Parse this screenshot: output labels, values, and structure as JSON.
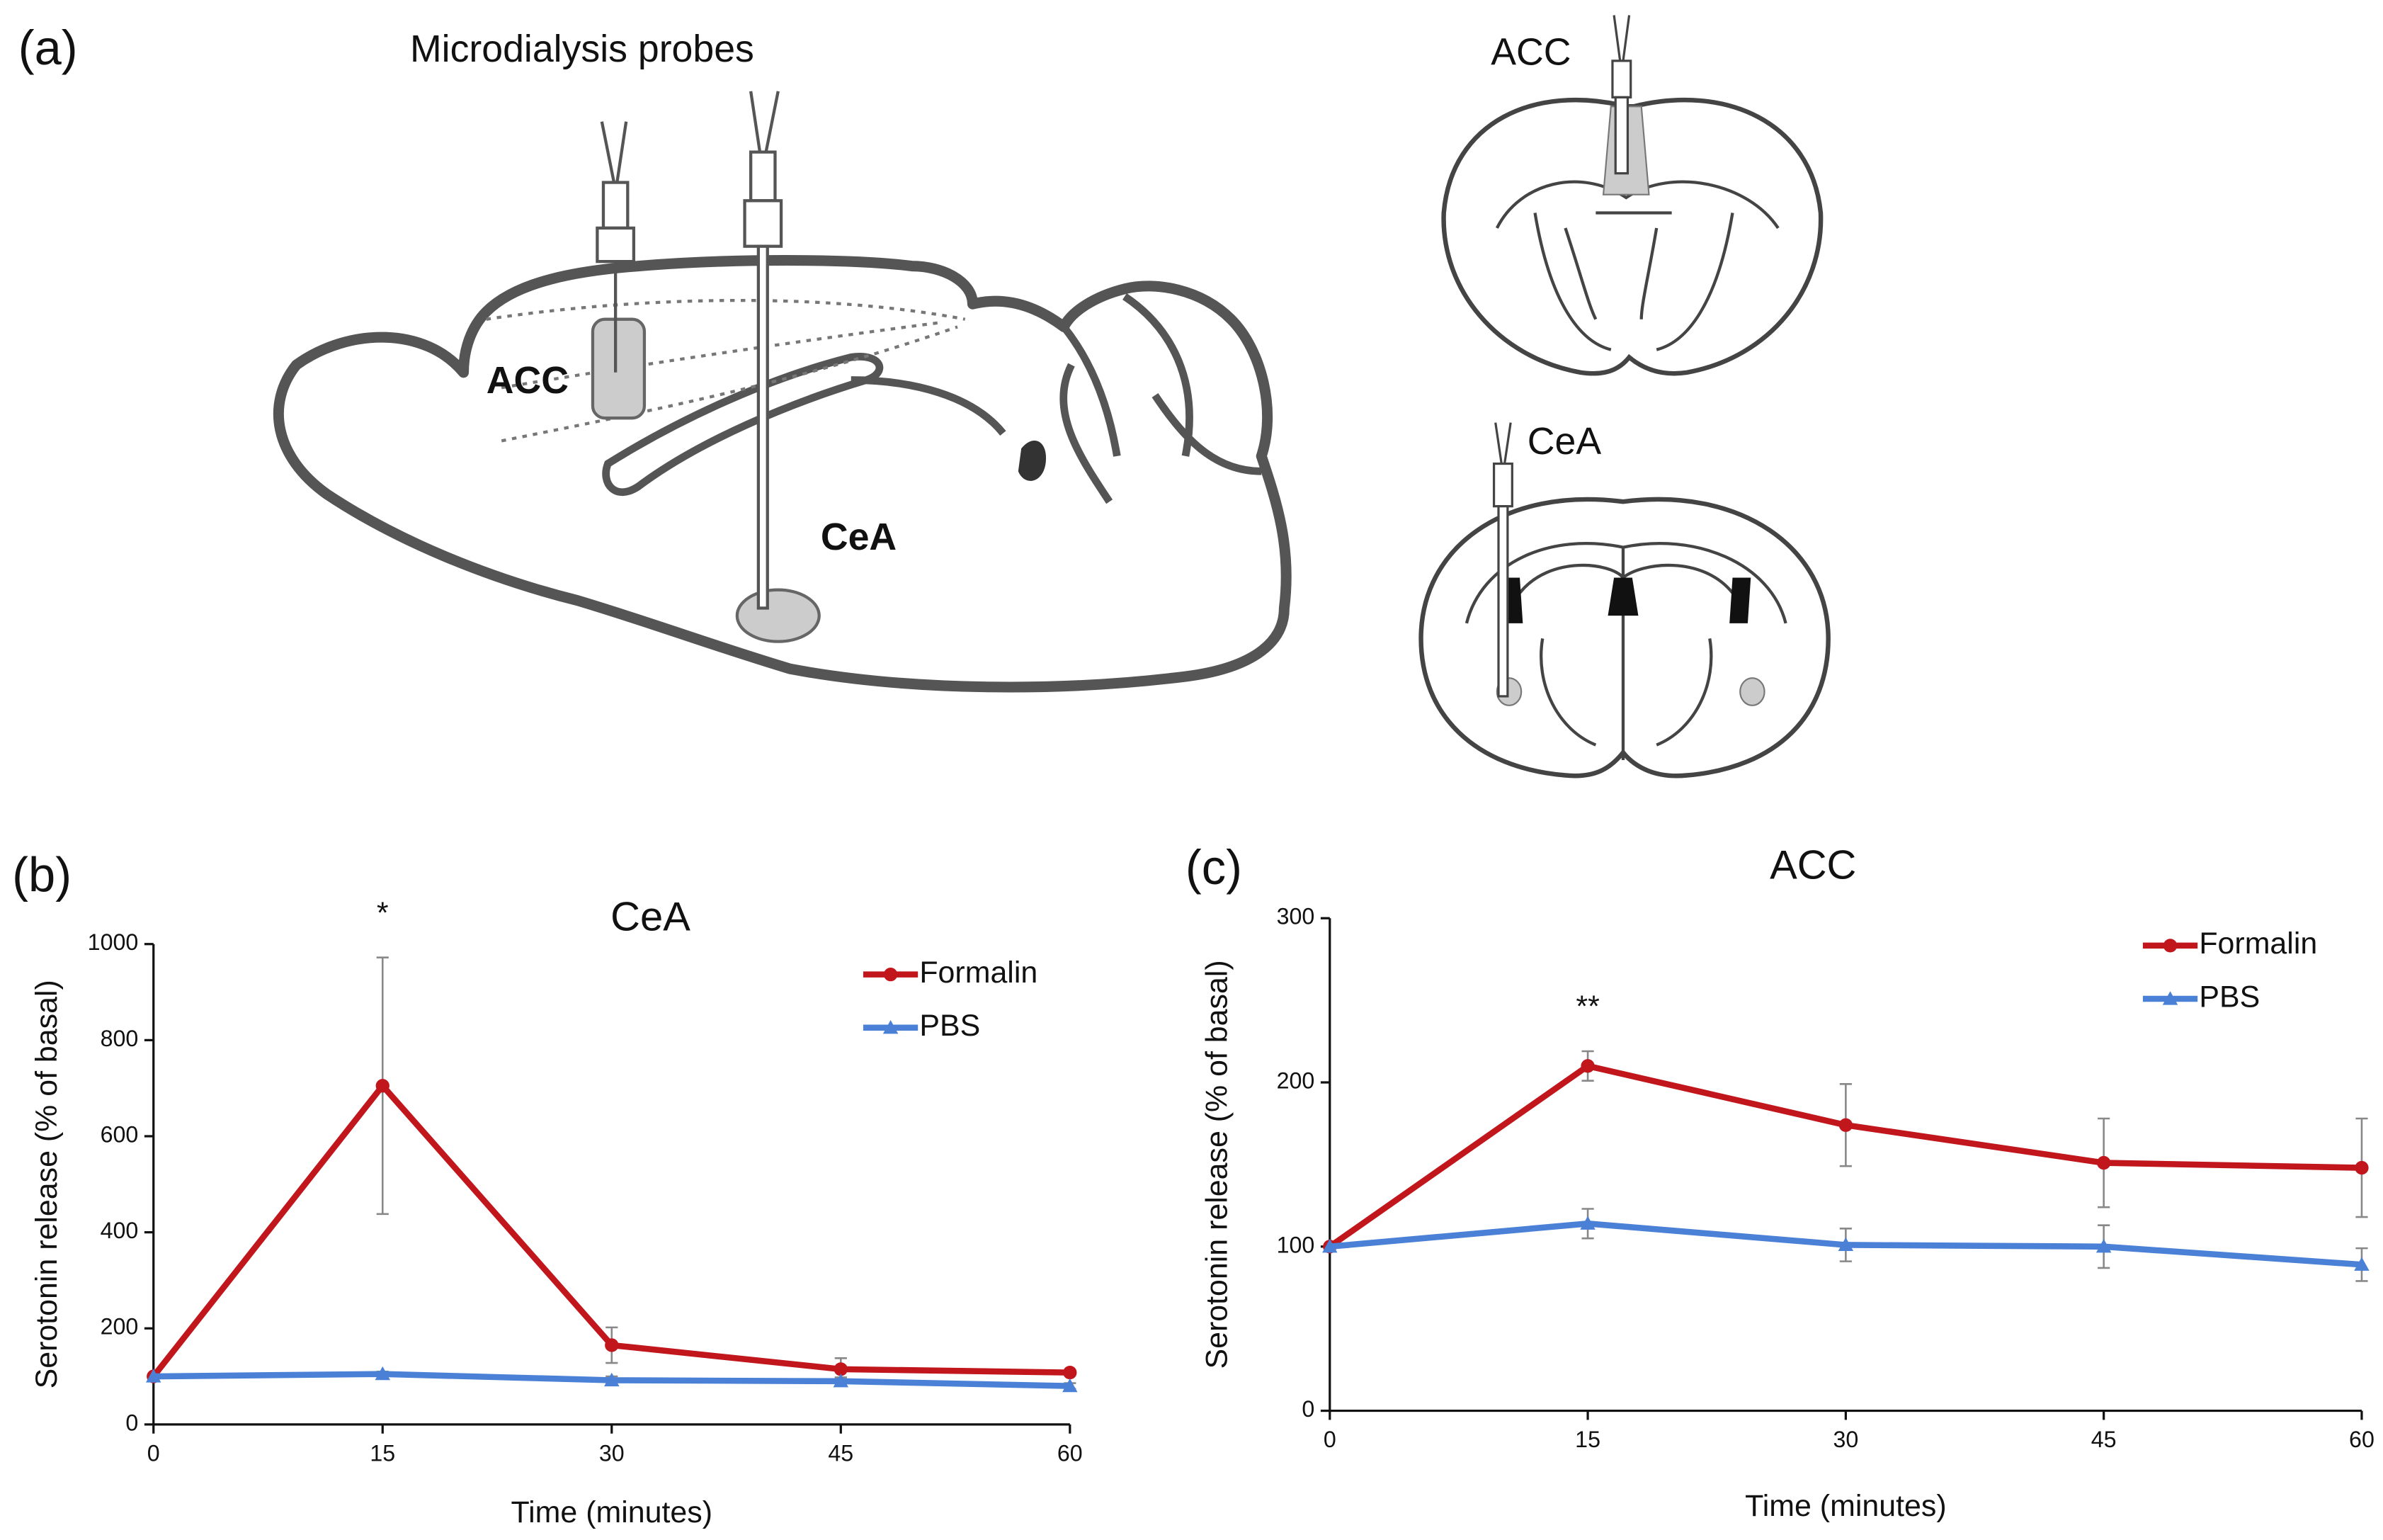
{
  "diagram": {
    "panel": "(a)",
    "probes_label": "Microdialysis probes",
    "sagittal_acc": "ACC",
    "sagittal_cea": "CeA",
    "coronal_acc": "ACC",
    "coronal_cea": "CeA"
  },
  "chart_data": [
    {
      "type": "line",
      "panel": "(b)",
      "title": "CeA",
      "x_label": "Time (minutes)",
      "y_label": "Serotonin release (% of basal)",
      "x": [
        0,
        15,
        30,
        45,
        60
      ],
      "xlim": [
        0,
        60
      ],
      "xticks": [
        0,
        15,
        30,
        45,
        60
      ],
      "ylim": [
        0,
        1000
      ],
      "yticks": [
        0,
        200,
        400,
        600,
        800,
        1000
      ],
      "grid": false,
      "legend": "upper right",
      "annotations": [
        {
          "text": "*",
          "x": 15
        }
      ],
      "series": [
        {
          "name": "Formalin",
          "color": "#c0161c",
          "marker": "circle",
          "values": [
            100,
            705,
            165,
            115,
            108
          ],
          "errors": [
            0,
            267,
            37,
            23,
            3
          ]
        },
        {
          "name": "PBS",
          "color": "#4a80d6",
          "marker": "triangle",
          "values": [
            100,
            105,
            92,
            90,
            80
          ],
          "errors": [
            0,
            5,
            8,
            8,
            6
          ]
        }
      ]
    },
    {
      "type": "line",
      "panel": "(c)",
      "title": "ACC",
      "x_label": "Time (minutes)",
      "y_label": "Serotonin release (% of basal)",
      "x": [
        0,
        15,
        30,
        45,
        60
      ],
      "xlim": [
        0,
        60
      ],
      "xticks": [
        0,
        15,
        30,
        45,
        60
      ],
      "ylim": [
        0,
        300
      ],
      "yticks": [
        0,
        100,
        200,
        300
      ],
      "grid": false,
      "legend": "upper right",
      "annotations": [
        {
          "text": "**",
          "x": 15
        }
      ],
      "series": [
        {
          "name": "Formalin",
          "color": "#c0161c",
          "marker": "circle",
          "values": [
            100,
            210,
            174,
            151,
            148
          ],
          "errors": [
            0,
            9,
            25,
            27,
            30
          ]
        },
        {
          "name": "PBS",
          "color": "#4a80d6",
          "marker": "triangle",
          "values": [
            100,
            114,
            101,
            100,
            89
          ],
          "errors": [
            0,
            9,
            10,
            13,
            10
          ]
        }
      ]
    }
  ]
}
